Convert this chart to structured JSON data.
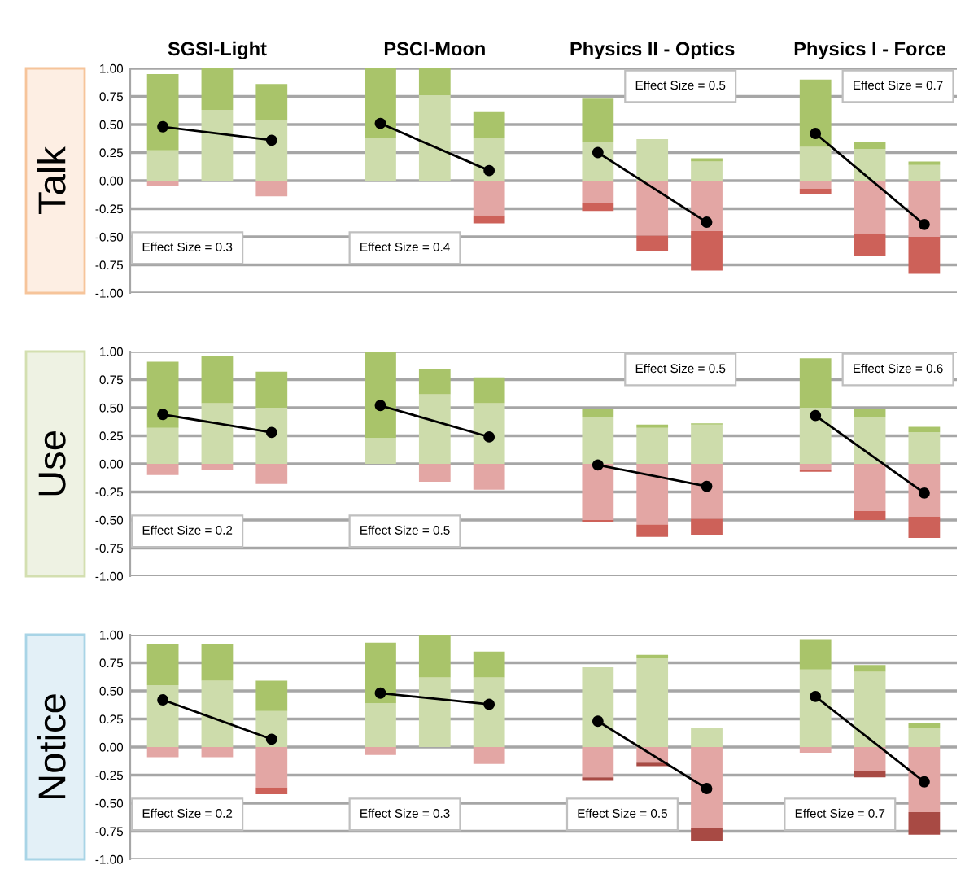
{
  "chart_data": [
    {
      "type": "bar",
      "stacked": true,
      "ylabel": "Talk",
      "categories": [
        null,
        null,
        null,
        null,
        null,
        null,
        null,
        null,
        null,
        null,
        null,
        null,
        null,
        null,
        null
      ],
      "ylim": [
        -1,
        1
      ],
      "yticks": [
        {
          "value": -1,
          "label": "-1.00"
        },
        {
          "value": -0.75,
          "label": "-0.75"
        },
        {
          "value": -0.5,
          "label": "-0.50"
        },
        {
          "value": -0.25,
          "label": "-0.25"
        },
        {
          "value": 0,
          "label": "0.00"
        },
        {
          "value": 0.25,
          "label": "0.25"
        },
        {
          "value": 0.5,
          "label": "0.50"
        },
        {
          "value": 0.75,
          "label": "0.75"
        },
        {
          "value": 1,
          "label": "1.00"
        }
      ],
      "tick_labels": "y",
      "grid": "y",
      "annotations": [
        "SGSI-Light",
        "PSCI-Moon",
        "Physics II - Optics",
        "Physics I - Force",
        "Effect Size = 0.3",
        "Effect Size = 0.4",
        "Effect Size = 0.5",
        "Effect Size = 0.7"
      ],
      "series": [
        {
          "color": "#cddcab",
          "values": [
            0.27,
            0.63,
            0.54,
            null,
            0.38,
            0.76,
            0.38,
            null,
            0.34,
            0.37,
            0.17,
            null,
            0.3,
            0.28,
            0.14
          ]
        },
        {
          "color": "#a9c46a",
          "values": [
            0.68,
            0.37,
            0.32,
            null,
            0.62,
            0.24,
            0.23,
            null,
            0.39,
            0,
            0.03,
            null,
            0.6,
            0.06,
            0.03
          ]
        },
        {
          "color": "#e3a6a4",
          "values": [
            -0.05,
            0,
            -0.14,
            null,
            0,
            0,
            -0.31,
            null,
            -0.2,
            -0.49,
            -0.45,
            null,
            -0.07,
            -0.47,
            -0.5
          ]
        },
        {
          "color": "#cd6159",
          "values": [
            0,
            0,
            0,
            null,
            0,
            0,
            -0.07,
            null,
            -0.07,
            -0.14,
            -0.35,
            null,
            -0.05,
            -0.2,
            -0.33
          ]
        },
        {
          "type": "line",
          "color": "#000000",
          "marker": "circle",
          "values": [
            0.48,
            null,
            0.36,
            null,
            null,
            null,
            null,
            null,
            null,
            null,
            null,
            null,
            null,
            null,
            null
          ]
        },
        {
          "type": "line",
          "color": "#000000",
          "marker": "circle",
          "values": [
            null,
            null,
            null,
            null,
            0.51,
            null,
            0.09,
            null,
            null,
            null,
            null,
            null,
            null,
            null,
            null
          ]
        },
        {
          "type": "line",
          "color": "#000000",
          "marker": "circle",
          "values": [
            null,
            null,
            null,
            null,
            null,
            null,
            null,
            null,
            0.25,
            null,
            -0.37,
            null,
            null,
            null,
            null
          ]
        },
        {
          "type": "line",
          "color": "#000000",
          "marker": "circle",
          "values": [
            null,
            null,
            null,
            null,
            null,
            null,
            null,
            null,
            null,
            null,
            null,
            null,
            0.42,
            null,
            -0.39
          ]
        }
      ]
    },
    {
      "type": "bar",
      "stacked": true,
      "ylabel": "Use",
      "categories": [
        null,
        null,
        null,
        null,
        null,
        null,
        null,
        null,
        null,
        null,
        null,
        null,
        null,
        null,
        null
      ],
      "ylim": [
        -1,
        1
      ],
      "yticks": [
        {
          "value": -1,
          "label": "-1.00"
        },
        {
          "value": -0.75,
          "label": "-0.75"
        },
        {
          "value": -0.5,
          "label": "-0.50"
        },
        {
          "value": -0.25,
          "label": "-0.25"
        },
        {
          "value": 0,
          "label": "0.00"
        },
        {
          "value": 0.25,
          "label": "0.25"
        },
        {
          "value": 0.5,
          "label": "0.50"
        },
        {
          "value": 0.75,
          "label": "0.75"
        },
        {
          "value": 1,
          "label": "1.00"
        }
      ],
      "tick_labels": "y",
      "grid": "y",
      "annotations": [
        "Effect Size = 0.2",
        "Effect Size = 0.5",
        "Effect Size = 0.5",
        "Effect Size = 0.6"
      ],
      "series": [
        {
          "color": "#cddcab",
          "values": [
            0.32,
            0.54,
            0.5,
            null,
            0.23,
            0.62,
            0.54,
            null,
            0.42,
            0.32,
            0.35,
            null,
            0.5,
            0.42,
            0.28
          ]
        },
        {
          "color": "#a9c46a",
          "values": [
            0.59,
            0.42,
            0.32,
            null,
            0.77,
            0.22,
            0.23,
            null,
            0.07,
            0.03,
            0.01,
            null,
            0.44,
            0.07,
            0.05
          ]
        },
        {
          "color": "#e3a6a4",
          "values": [
            -0.1,
            -0.05,
            -0.18,
            null,
            0,
            -0.16,
            -0.23,
            null,
            -0.5,
            -0.54,
            -0.49,
            null,
            -0.05,
            -0.42,
            -0.47
          ]
        },
        {
          "color": "#cd6159",
          "values": [
            0,
            0,
            0,
            null,
            0,
            0,
            0,
            null,
            -0.02,
            -0.11,
            -0.14,
            null,
            -0.02,
            -0.08,
            -0.19
          ]
        },
        {
          "type": "line",
          "color": "#000000",
          "marker": "circle",
          "values": [
            0.44,
            null,
            0.28,
            null,
            null,
            null,
            null,
            null,
            null,
            null,
            null,
            null,
            null,
            null,
            null
          ]
        },
        {
          "type": "line",
          "color": "#000000",
          "marker": "circle",
          "values": [
            null,
            null,
            null,
            null,
            0.52,
            null,
            0.24,
            null,
            null,
            null,
            null,
            null,
            null,
            null,
            null
          ]
        },
        {
          "type": "line",
          "color": "#000000",
          "marker": "circle",
          "values": [
            null,
            null,
            null,
            null,
            null,
            null,
            null,
            null,
            -0.01,
            null,
            -0.2,
            null,
            null,
            null,
            null
          ]
        },
        {
          "type": "line",
          "color": "#000000",
          "marker": "circle",
          "values": [
            null,
            null,
            null,
            null,
            null,
            null,
            null,
            null,
            null,
            null,
            null,
            null,
            0.43,
            null,
            -0.26
          ]
        }
      ]
    },
    {
      "type": "bar",
      "stacked": true,
      "ylabel": "Notice",
      "categories": [
        null,
        null,
        null,
        null,
        null,
        null,
        null,
        null,
        null,
        null,
        null,
        null,
        null,
        null,
        null
      ],
      "ylim": [
        -1,
        1
      ],
      "yticks": [
        {
          "value": -1,
          "label": "-1.00"
        },
        {
          "value": -0.75,
          "label": "-0.75"
        },
        {
          "value": -0.5,
          "label": "-0.50"
        },
        {
          "value": -0.25,
          "label": "-0.25"
        },
        {
          "value": 0,
          "label": "0.00"
        },
        {
          "value": 0.25,
          "label": "0.25"
        },
        {
          "value": 0.5,
          "label": "0.50"
        },
        {
          "value": 0.75,
          "label": "0.75"
        },
        {
          "value": 1,
          "label": "1.00"
        }
      ],
      "tick_labels": "y",
      "grid": "y",
      "annotations": [
        "Effect Size = 0.2",
        "Effect Size = 0.3",
        "Effect Size = 0.5",
        "Effect Size = 0.7"
      ],
      "series": [
        {
          "color": "#cddcab",
          "values": [
            0.55,
            0.59,
            0.32,
            null,
            0.39,
            0.62,
            0.62,
            null,
            0.71,
            0.79,
            0.17,
            null,
            0.69,
            0.67,
            0.17
          ]
        },
        {
          "color": "#a9c46a",
          "values": [
            0.37,
            0.33,
            0.27,
            null,
            0.54,
            0.38,
            0.23,
            null,
            0,
            0.03,
            0,
            null,
            0.27,
            0.06,
            0.04
          ]
        },
        {
          "color": "#e3a6a4",
          "values": [
            -0.09,
            -0.09,
            -0.36,
            null,
            -0.07,
            0,
            -0.15,
            null,
            -0.27,
            -0.14,
            -0.72,
            null,
            -0.05,
            -0.21,
            -0.58
          ]
        },
        {
          "colors": [
            "#cd6159",
            "#cd6159",
            "#cd6159",
            "#cd6159",
            "#cd6159",
            "#cd6159",
            "#cd6159",
            "#cd6159",
            "#a84a44",
            "#a84a44",
            "#a84a44",
            "#a84a44",
            "#a84a44",
            "#a84a44",
            "#a84a44"
          ],
          "values": [
            0,
            0,
            -0.06,
            null,
            0,
            0,
            0,
            null,
            -0.03,
            -0.03,
            -0.12,
            null,
            0,
            -0.06,
            -0.2
          ]
        },
        {
          "type": "line",
          "color": "#000000",
          "marker": "circle",
          "values": [
            0.42,
            null,
            0.07,
            null,
            null,
            null,
            null,
            null,
            null,
            null,
            null,
            null,
            null,
            null,
            null
          ]
        },
        {
          "type": "line",
          "color": "#000000",
          "marker": "circle",
          "values": [
            null,
            null,
            null,
            null,
            0.48,
            null,
            0.38,
            null,
            null,
            null,
            null,
            null,
            null,
            null,
            null
          ]
        },
        {
          "type": "line",
          "color": "#000000",
          "marker": "circle",
          "values": [
            null,
            null,
            null,
            null,
            null,
            null,
            null,
            null,
            0.23,
            null,
            -0.37,
            null,
            null,
            null,
            null
          ]
        },
        {
          "type": "line",
          "color": "#000000",
          "marker": "circle",
          "values": [
            null,
            null,
            null,
            null,
            null,
            null,
            null,
            null,
            null,
            null,
            null,
            null,
            0.45,
            null,
            -0.31
          ]
        }
      ]
    }
  ]
}
